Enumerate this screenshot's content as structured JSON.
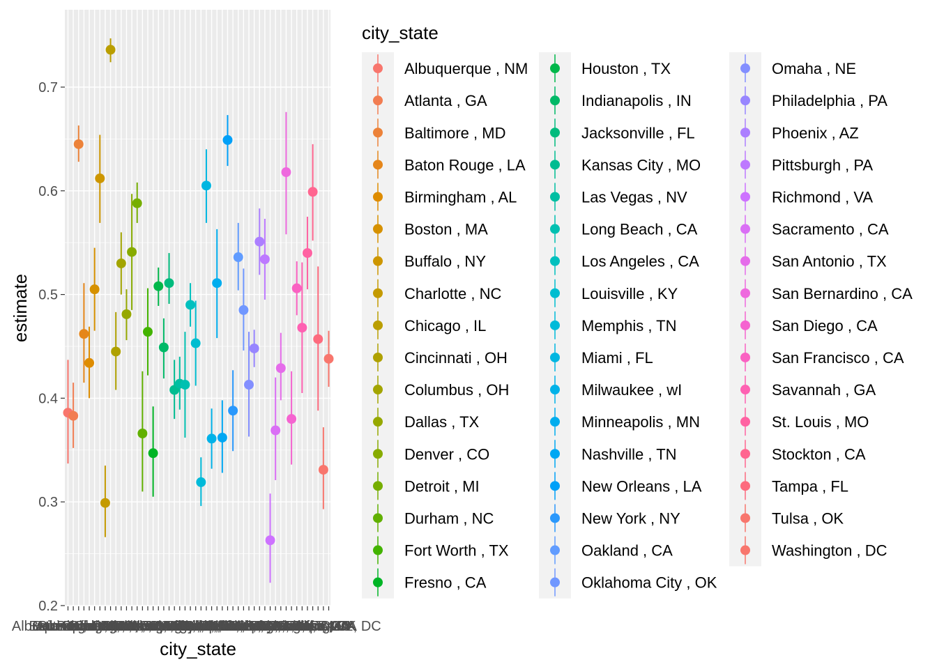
{
  "chart_data": {
    "type": "scatter",
    "xlabel": "city_state",
    "ylabel": "estimate",
    "legend_title": "city_state",
    "legend_placement": "right",
    "ylim": [
      0.195,
      0.745
    ],
    "yticks": [
      "0.2",
      "0.3",
      "0.4",
      "0.5",
      "0.6",
      "0.7"
    ],
    "grid": true,
    "panel_background": "#ebebeb",
    "categories": [
      "Albuquerque , NM",
      "Atlanta , GA",
      "Baltimore , MD",
      "Baton Rouge , LA",
      "Birmingham , AL",
      "Boston , MA",
      "Buffalo , NY",
      "Charlotte , NC",
      "Chicago , IL",
      "Cincinnati , OH",
      "Columbus , OH",
      "Dallas , TX",
      "Denver , CO",
      "Detroit , MI",
      "Durham , NC",
      "Fort Worth , TX",
      "Fresno , CA",
      "Houston , TX",
      "Indianapolis , IN",
      "Jacksonville , FL",
      "Kansas City , MO",
      "Las Vegas , NV",
      "Long Beach , CA",
      "Los Angeles , CA",
      "Louisville , KY",
      "Memphis , TN",
      "Miami , FL",
      "Milwaukee , wI",
      "Minneapolis , MN",
      "Nashville , TN",
      "New Orleans , LA",
      "New York , NY",
      "Oakland , CA",
      "Oklahoma City , OK",
      "Omaha , NE",
      "Philadelphia , PA",
      "Phoenix , AZ",
      "Pittsburgh , PA",
      "Richmond , VA",
      "Sacramento , CA",
      "San Antonio , TX",
      "San Bernardino , CA",
      "San Diego , CA",
      "San Francisco , CA",
      "Savannah , GA",
      "St. Louis , MO",
      "Stockton , CA",
      "Tampa , FL",
      "Tulsa , OK",
      "Washington , DC"
    ],
    "estimate": [
      0.386,
      0.383,
      0.645,
      0.462,
      0.434,
      0.505,
      0.612,
      0.299,
      0.736,
      0.445,
      0.53,
      0.481,
      0.541,
      0.588,
      0.366,
      0.464,
      0.347,
      0.508,
      0.449,
      0.511,
      0.408,
      0.414,
      0.413,
      0.49,
      0.453,
      0.319,
      0.605,
      0.361,
      0.511,
      0.362,
      0.649,
      0.388,
      0.536,
      0.485,
      0.413,
      0.448,
      0.551,
      0.534,
      0.263,
      0.369,
      0.429,
      0.618,
      0.38,
      0.506,
      0.468,
      0.54,
      0.599,
      0.457,
      0.331,
      0.438
    ],
    "conf_low": [
      0.337,
      0.352,
      0.628,
      0.415,
      0.4,
      0.465,
      0.569,
      0.266,
      0.724,
      0.408,
      0.5,
      0.456,
      0.485,
      0.569,
      0.31,
      0.422,
      0.305,
      0.489,
      0.419,
      0.491,
      0.38,
      0.389,
      0.362,
      0.469,
      0.412,
      0.296,
      0.569,
      0.332,
      0.458,
      0.328,
      0.624,
      0.349,
      0.504,
      0.446,
      0.363,
      0.43,
      0.519,
      0.495,
      0.222,
      0.321,
      0.398,
      0.558,
      0.336,
      0.48,
      0.405,
      0.505,
      0.552,
      0.388,
      0.293,
      0.411
    ],
    "conf_high": [
      0.437,
      0.415,
      0.663,
      0.511,
      0.469,
      0.545,
      0.654,
      0.335,
      0.747,
      0.483,
      0.56,
      0.505,
      0.597,
      0.608,
      0.426,
      0.506,
      0.392,
      0.526,
      0.477,
      0.54,
      0.437,
      0.44,
      0.464,
      0.511,
      0.494,
      0.343,
      0.64,
      0.39,
      0.563,
      0.398,
      0.673,
      0.427,
      0.569,
      0.525,
      0.464,
      0.466,
      0.583,
      0.573,
      0.308,
      0.42,
      0.463,
      0.676,
      0.426,
      0.532,
      0.531,
      0.575,
      0.645,
      0.527,
      0.372,
      0.465
    ],
    "colors": [
      "#F8766D",
      "#F27D52",
      "#EC8239",
      "#E5861A",
      "#DE8C00",
      "#D69100",
      "#CD9600",
      "#C49A00",
      "#BA9E00",
      "#AFA100",
      "#A3A500",
      "#96A800",
      "#87AB00",
      "#76AE00",
      "#61B000",
      "#43B300",
      "#00B425",
      "#00B74A",
      "#00B967",
      "#00BB7D",
      "#00BC91",
      "#00BEA2",
      "#00C0B1",
      "#00C0BE",
      "#00BDD0",
      "#00BAD9",
      "#00B6E1",
      "#00B2E8",
      "#00ADEE",
      "#00A7F3",
      "#00A0F8",
      "#2A98FC",
      "#619CFF",
      "#7097FF",
      "#838FFF",
      "#9886FF",
      "#AC7FFF",
      "#BD79FF",
      "#CD72FF",
      "#DA6FF5",
      "#E56CEA",
      "#EE69DE",
      "#F564D0",
      "#FA62C2",
      "#FE61B2",
      "#FF62A2",
      "#FF6690",
      "#FD6B7E",
      "#F8766D",
      "#F8766D"
    ]
  }
}
